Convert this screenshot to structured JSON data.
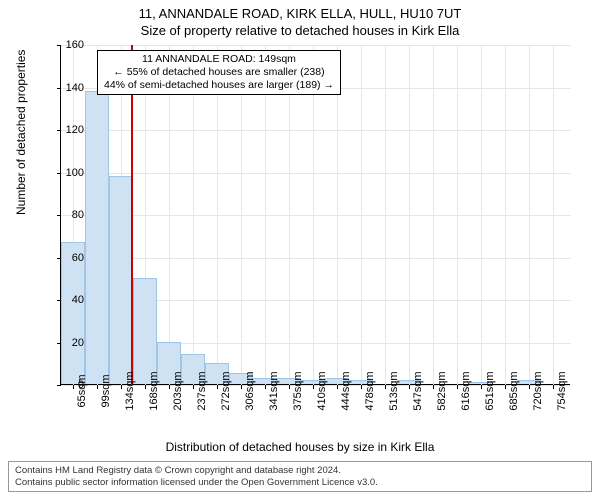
{
  "header": {
    "line1": "11, ANNANDALE ROAD, KIRK ELLA, HULL, HU10 7UT",
    "line2": "Size of property relative to detached houses in Kirk Ella"
  },
  "ylabel": "Number of detached properties",
  "xlabel": "Distribution of detached houses by size in Kirk Ella",
  "chart": {
    "type": "histogram",
    "background_color": "#ffffff",
    "grid_color": "#e6e6e6",
    "axis_color": "#000000",
    "bar_color": "#cfe2f3",
    "bar_border_color": "#9fc5e8",
    "reference_line_color": "#cc0000",
    "reference_value_sqm": 149,
    "xlim": [
      48,
      780
    ],
    "ylim": [
      0,
      160
    ],
    "ytick_step": 20,
    "xticks": [
      65,
      99,
      134,
      168,
      203,
      237,
      272,
      306,
      341,
      375,
      410,
      444,
      478,
      513,
      547,
      582,
      616,
      651,
      685,
      720,
      754
    ],
    "xtick_suffix": "sqm",
    "bin_width_sqm": 34.5,
    "values": [
      67,
      138,
      98,
      50,
      20,
      14,
      10,
      5,
      3,
      3,
      2,
      3,
      2,
      0,
      2,
      0,
      0,
      1,
      0,
      2,
      0
    ],
    "label_fontsize": 11,
    "title_fontsize": 13
  },
  "annotation": {
    "line1": "11 ANNANDALE ROAD: 149sqm",
    "line2": "← 55% of detached houses are smaller (238)",
    "line3": "44% of semi-detached houses are larger (189) →"
  },
  "footer": {
    "line1": "Contains HM Land Registry data © Crown copyright and database right 2024.",
    "line2": "Contains public sector information licensed under the Open Government Licence v3.0."
  }
}
